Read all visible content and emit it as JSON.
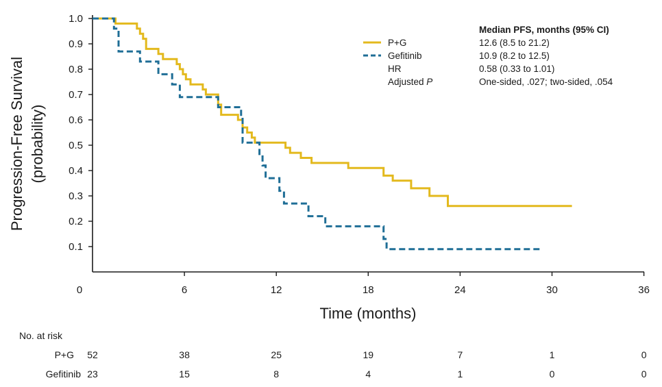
{
  "chart_data": {
    "type": "line",
    "subtype": "kaplan-meier",
    "ylabel_line1": "Progression-Free Survival",
    "ylabel_line2": "(probability)",
    "xlabel": "Time (months)",
    "xlim": [
      0,
      36
    ],
    "ylim": [
      0,
      1.0
    ],
    "xticks": [
      0,
      6,
      12,
      18,
      24,
      30,
      36
    ],
    "xtick_labels": [
      "0",
      "6",
      "12",
      "18",
      "24",
      "30",
      "36"
    ],
    "yticks": [
      1.0,
      0.9,
      0.8,
      0.7,
      0.6,
      0.5,
      0.4,
      0.3,
      0.2,
      0.1
    ],
    "ytick_labels": [
      "1.0",
      "0.9",
      "0.8",
      "0.7",
      "0.6",
      "0.5",
      "0.4",
      "0.3",
      "0.2",
      "0.1"
    ],
    "series": [
      {
        "name": "P+G",
        "color": "#e3b91d",
        "style": "solid",
        "points": [
          [
            0,
            1.0
          ],
          [
            1.5,
            1.0
          ],
          [
            1.5,
            0.98
          ],
          [
            2.9,
            0.98
          ],
          [
            2.9,
            0.96
          ],
          [
            3.1,
            0.96
          ],
          [
            3.1,
            0.94
          ],
          [
            3.3,
            0.94
          ],
          [
            3.3,
            0.92
          ],
          [
            3.5,
            0.92
          ],
          [
            3.5,
            0.88
          ],
          [
            4.3,
            0.88
          ],
          [
            4.3,
            0.86
          ],
          [
            4.6,
            0.86
          ],
          [
            4.6,
            0.84
          ],
          [
            5.5,
            0.84
          ],
          [
            5.5,
            0.82
          ],
          [
            5.7,
            0.82
          ],
          [
            5.7,
            0.8
          ],
          [
            5.9,
            0.8
          ],
          [
            5.9,
            0.78
          ],
          [
            6.1,
            0.78
          ],
          [
            6.1,
            0.76
          ],
          [
            6.4,
            0.76
          ],
          [
            6.4,
            0.74
          ],
          [
            7.2,
            0.74
          ],
          [
            7.2,
            0.72
          ],
          [
            7.4,
            0.72
          ],
          [
            7.4,
            0.7
          ],
          [
            8.2,
            0.7
          ],
          [
            8.2,
            0.66
          ],
          [
            8.4,
            0.66
          ],
          [
            8.4,
            0.62
          ],
          [
            9.5,
            0.62
          ],
          [
            9.5,
            0.6
          ],
          [
            9.8,
            0.6
          ],
          [
            9.8,
            0.57
          ],
          [
            10.1,
            0.57
          ],
          [
            10.1,
            0.55
          ],
          [
            10.4,
            0.55
          ],
          [
            10.4,
            0.53
          ],
          [
            10.6,
            0.53
          ],
          [
            10.6,
            0.51
          ],
          [
            12.6,
            0.51
          ],
          [
            12.6,
            0.49
          ],
          [
            12.9,
            0.49
          ],
          [
            12.9,
            0.47
          ],
          [
            13.6,
            0.47
          ],
          [
            13.6,
            0.45
          ],
          [
            14.3,
            0.45
          ],
          [
            14.3,
            0.43
          ],
          [
            16.7,
            0.43
          ],
          [
            16.7,
            0.41
          ],
          [
            19.0,
            0.41
          ],
          [
            19.0,
            0.38
          ],
          [
            19.6,
            0.38
          ],
          [
            19.6,
            0.36
          ],
          [
            20.8,
            0.36
          ],
          [
            20.8,
            0.33
          ],
          [
            22.0,
            0.33
          ],
          [
            22.0,
            0.3
          ],
          [
            23.2,
            0.3
          ],
          [
            23.2,
            0.26
          ],
          [
            31.3,
            0.26
          ]
        ]
      },
      {
        "name": "Gefitinib",
        "color": "#1f6e96",
        "style": "dashed",
        "points": [
          [
            0,
            1.0
          ],
          [
            1.4,
            1.0
          ],
          [
            1.4,
            0.96
          ],
          [
            1.7,
            0.96
          ],
          [
            1.7,
            0.87
          ],
          [
            3.1,
            0.87
          ],
          [
            3.1,
            0.83
          ],
          [
            4.3,
            0.83
          ],
          [
            4.3,
            0.78
          ],
          [
            5.2,
            0.78
          ],
          [
            5.2,
            0.74
          ],
          [
            5.7,
            0.74
          ],
          [
            5.7,
            0.69
          ],
          [
            8.2,
            0.69
          ],
          [
            8.2,
            0.65
          ],
          [
            9.7,
            0.65
          ],
          [
            9.7,
            0.61
          ],
          [
            9.8,
            0.61
          ],
          [
            9.8,
            0.51
          ],
          [
            10.9,
            0.51
          ],
          [
            10.9,
            0.46
          ],
          [
            11.1,
            0.46
          ],
          [
            11.1,
            0.42
          ],
          [
            11.3,
            0.42
          ],
          [
            11.3,
            0.37
          ],
          [
            12.2,
            0.37
          ],
          [
            12.2,
            0.32
          ],
          [
            12.5,
            0.32
          ],
          [
            12.5,
            0.27
          ],
          [
            14.1,
            0.27
          ],
          [
            14.1,
            0.22
          ],
          [
            15.2,
            0.22
          ],
          [
            15.2,
            0.18
          ],
          [
            19.0,
            0.18
          ],
          [
            19.0,
            0.13
          ],
          [
            19.2,
            0.13
          ],
          [
            19.2,
            0.09
          ],
          [
            29.4,
            0.09
          ]
        ]
      }
    ],
    "legend": {
      "position": "top-right",
      "entries": [
        "P+G",
        "Gefitinib"
      ],
      "extra_labels": [
        "HR",
        "Adjusted "
      ],
      "adjusted_p_italic": "P",
      "stats_header": "Median PFS, months (95% CI)",
      "stats_values": [
        "12.6 (8.5 to 21.2)",
        "10.9 (8.2 to 12.5)",
        "0.58 (0.33 to 1.01)",
        "One-sided, .027; two-sided, .054"
      ]
    },
    "risk_table": {
      "title": "No. at risk",
      "times": [
        0,
        6,
        12,
        18,
        24,
        30,
        36
      ],
      "rows": [
        {
          "label": "P+G",
          "values": [
            "52",
            "38",
            "25",
            "19",
            "7",
            "1",
            "0"
          ]
        },
        {
          "label": "Gefitinib",
          "values": [
            "23",
            "15",
            "8",
            "4",
            "1",
            "0",
            "0"
          ]
        }
      ]
    }
  }
}
